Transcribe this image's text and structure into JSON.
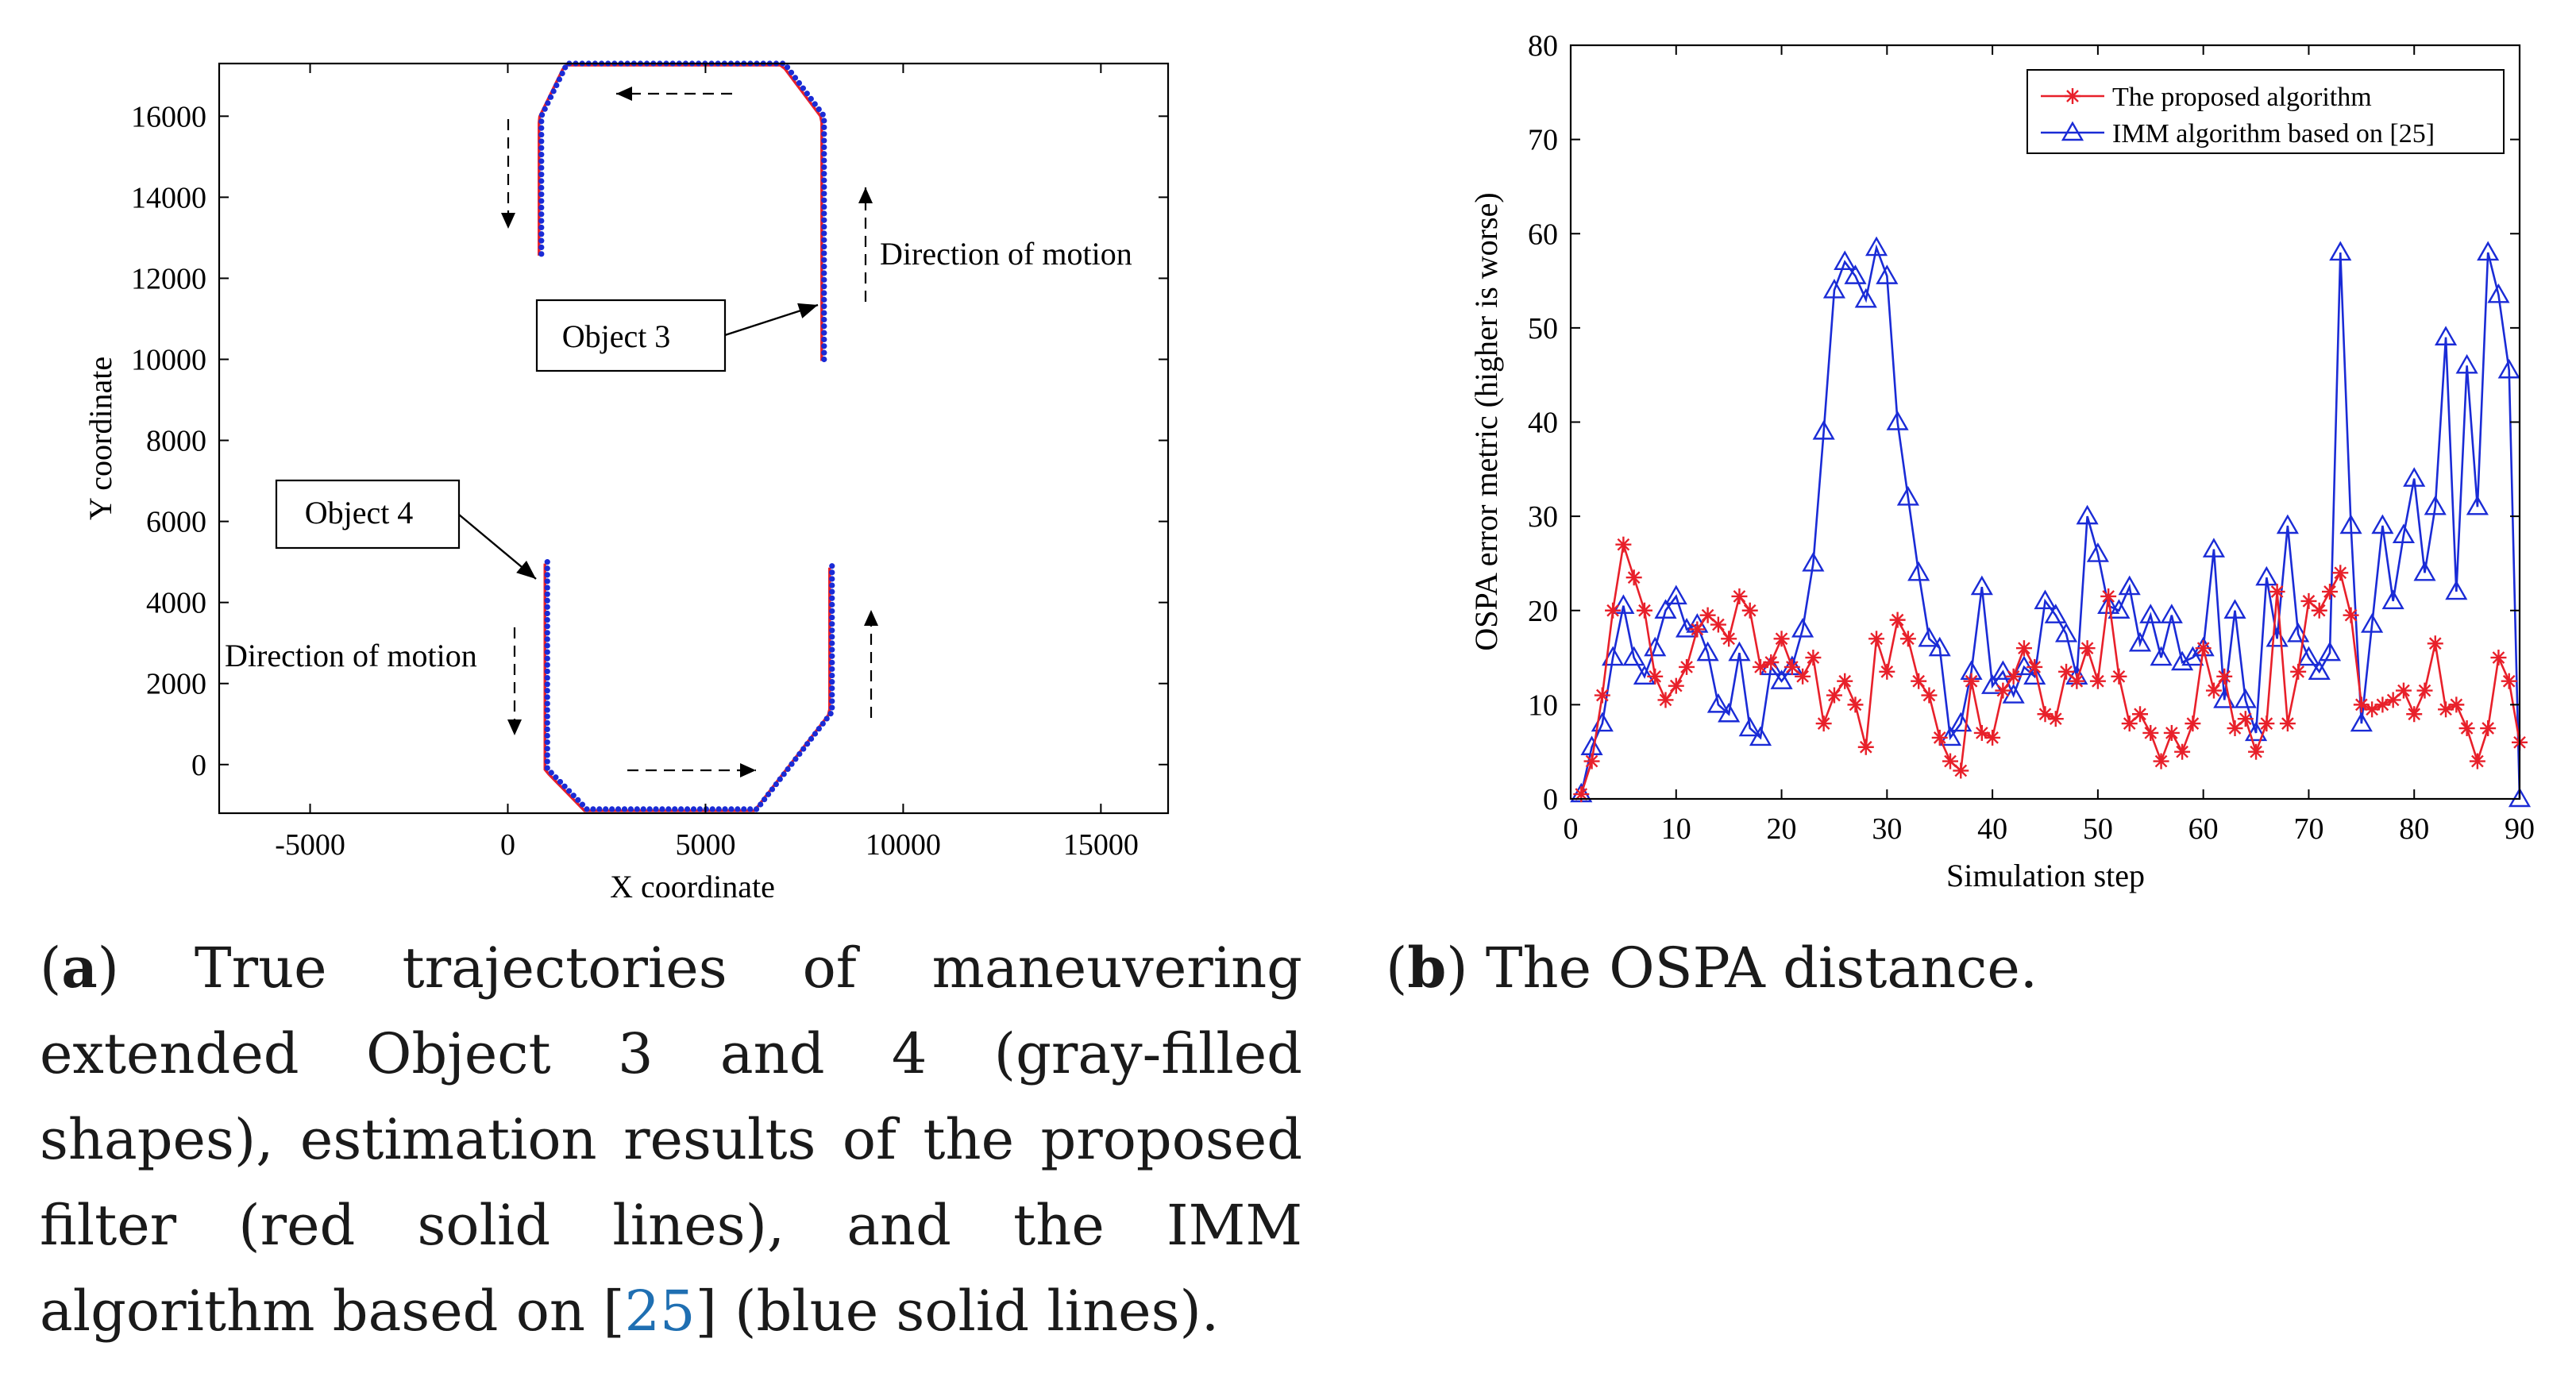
{
  "figure_a": {
    "caption_letter": "a",
    "caption_pre": "True trajectories of maneuvering extended Object 3 and 4 (gray-filled shapes), estimation results of the proposed filter (red solid lines), and the IMM algorithm based on [",
    "caption_ref": "25",
    "caption_post": "] (blue solid lines)."
  },
  "figure_b": {
    "caption_letter": "b",
    "caption_text": "The OSPA distance."
  },
  "chart_data": [
    {
      "type": "scatter",
      "xlabel": "X coordinate",
      "ylabel": "Y coordinate",
      "xlim": [
        -7300,
        16700
      ],
      "ylim": [
        -1200,
        17300
      ],
      "xticks": [
        -5000,
        0,
        5000,
        10000,
        15000
      ],
      "yticks": [
        0,
        2000,
        4000,
        6000,
        8000,
        10000,
        12000,
        14000,
        16000
      ],
      "xtick_labels": [
        "-5000",
        "0",
        "5000",
        "10000",
        "15000"
      ],
      "ytick_labels": [
        "0",
        "2000",
        "4000",
        "6000",
        "8000",
        "10000",
        "12000",
        "14000",
        "16000"
      ],
      "annotations": {
        "object3_label": "Object 3",
        "object4_label": "Object 4",
        "direction_top": "Direction of motion",
        "direction_bottom": "Direction of motion"
      },
      "series": [
        {
          "name": "Object 3 trajectory",
          "colors": {
            "proposed": "#e8202a",
            "imm": "#1a2bd6"
          },
          "path": [
            [
              8000,
              10000
            ],
            [
              8000,
              16000
            ],
            [
              7000,
              17300
            ],
            [
              1500,
              17300
            ],
            [
              850,
              16000
            ],
            [
              850,
              12600
            ]
          ]
        },
        {
          "name": "Object 4 trajectory",
          "colors": {
            "proposed": "#e8202a",
            "imm": "#1a2bd6"
          },
          "path": [
            [
              1000,
              5000
            ],
            [
              1000,
              -100
            ],
            [
              2000,
              -1100
            ],
            [
              6300,
              -1100
            ],
            [
              8200,
              1300
            ],
            [
              8200,
              4900
            ]
          ]
        }
      ]
    },
    {
      "type": "line",
      "xlabel": "Simulation step",
      "ylabel": "OSPA error metric (higher is worse)",
      "xlim": [
        0,
        90
      ],
      "ylim": [
        0,
        80
      ],
      "xticks": [
        0,
        10,
        20,
        30,
        40,
        50,
        60,
        70,
        80,
        90
      ],
      "yticks": [
        0,
        10,
        20,
        30,
        40,
        50,
        60,
        70,
        80
      ],
      "xtick_labels": [
        "0",
        "10",
        "20",
        "30",
        "40",
        "50",
        "60",
        "70",
        "80",
        "90"
      ],
      "ytick_labels": [
        "0",
        "10",
        "20",
        "30",
        "40",
        "50",
        "60",
        "70",
        "80"
      ],
      "legend_position": "top-right",
      "series": [
        {
          "name": "The proposed algorithm",
          "color": "#e8202a",
          "marker": "asterisk",
          "x": [
            1,
            2,
            3,
            4,
            5,
            6,
            7,
            8,
            9,
            10,
            11,
            12,
            13,
            14,
            15,
            16,
            17,
            18,
            19,
            20,
            21,
            22,
            23,
            24,
            25,
            26,
            27,
            28,
            29,
            30,
            31,
            32,
            33,
            34,
            35,
            36,
            37,
            38,
            39,
            40,
            41,
            42,
            43,
            44,
            45,
            46,
            47,
            48,
            49,
            50,
            51,
            52,
            53,
            54,
            55,
            56,
            57,
            58,
            59,
            60,
            61,
            62,
            63,
            64,
            65,
            66,
            67,
            68,
            69,
            70,
            71,
            72,
            73,
            74,
            75,
            76,
            77,
            78,
            79,
            80,
            81,
            82,
            83,
            84,
            85,
            86,
            87,
            88,
            89,
            90
          ],
          "values": [
            0.5,
            4,
            11,
            20,
            27,
            23.5,
            20,
            13,
            10.5,
            12,
            14,
            18,
            19.5,
            18.5,
            17,
            21.5,
            20,
            14,
            14.5,
            17,
            14,
            13,
            15,
            8,
            11,
            12.5,
            10,
            5.5,
            17,
            13.5,
            19,
            17,
            12.5,
            11,
            6.5,
            4,
            3,
            12.5,
            7,
            6.5,
            11.5,
            13,
            16,
            14,
            9,
            8.5,
            13.5,
            12.5,
            16,
            12.5,
            21.5,
            13,
            8,
            9,
            7,
            4,
            7,
            5,
            8,
            16,
            11.5,
            13,
            7.5,
            8.5,
            5,
            8,
            22,
            8,
            13.5,
            21,
            20,
            22,
            24,
            19.5,
            10,
            9.5,
            10,
            10.5,
            11.5,
            9,
            11.5,
            16.5,
            9.5,
            10,
            7.5,
            4,
            7.5,
            15,
            12.5,
            6
          ]
        },
        {
          "name": "IMM algorithm based on [25]",
          "color": "#1a2bd6",
          "marker": "triangle",
          "x": [
            1,
            2,
            3,
            4,
            5,
            6,
            7,
            8,
            9,
            10,
            11,
            12,
            13,
            14,
            15,
            16,
            17,
            18,
            19,
            20,
            21,
            22,
            23,
            24,
            25,
            26,
            27,
            28,
            29,
            30,
            31,
            32,
            33,
            34,
            35,
            36,
            37,
            38,
            39,
            40,
            41,
            42,
            43,
            44,
            45,
            46,
            47,
            48,
            49,
            50,
            51,
            52,
            53,
            54,
            55,
            56,
            57,
            58,
            59,
            60,
            61,
            62,
            63,
            64,
            65,
            66,
            67,
            68,
            69,
            70,
            71,
            72,
            73,
            74,
            75,
            76,
            77,
            78,
            79,
            80,
            81,
            82,
            83,
            84,
            85,
            86,
            87,
            88,
            89,
            90
          ],
          "values": [
            0.5,
            5.5,
            8,
            15,
            20.5,
            15,
            13,
            16,
            20,
            21.5,
            18,
            18.5,
            15.5,
            10,
            9,
            15.5,
            7.5,
            6.5,
            14,
            12.5,
            14,
            18,
            25,
            39,
            54,
            57,
            55.5,
            53,
            58.5,
            55.5,
            40,
            32,
            24,
            17,
            16,
            6.5,
            8,
            13.5,
            22.5,
            12,
            13.5,
            11,
            14,
            13,
            21,
            19.5,
            17.5,
            13,
            30,
            26,
            20.5,
            20,
            22.5,
            16.5,
            19.5,
            15,
            19.5,
            14.5,
            15,
            16,
            26.5,
            10.5,
            20,
            10.5,
            7,
            23.5,
            17,
            29,
            17.5,
            15,
            13.5,
            15.5,
            58,
            29,
            8,
            18.5,
            29,
            21,
            28,
            34,
            24,
            31,
            49,
            22,
            46,
            31,
            58,
            53.5,
            45.5,
            0
          ]
        }
      ]
    }
  ]
}
